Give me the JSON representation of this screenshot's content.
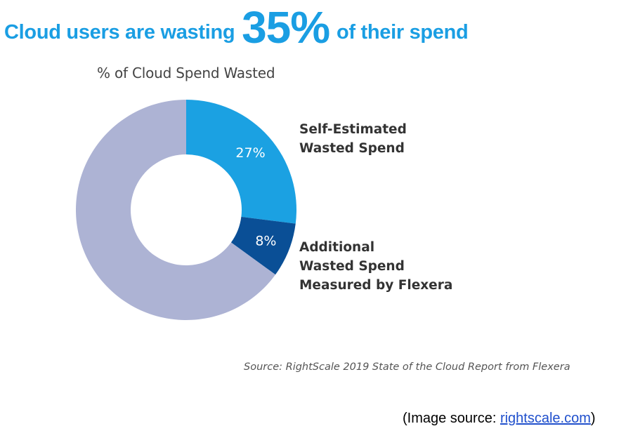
{
  "headline": {
    "prefix": "Cloud users are wasting",
    "highlight": "35%",
    "suffix": "of their spend"
  },
  "chart_data": {
    "type": "pie",
    "title": "% of Cloud Spend Wasted",
    "donut": true,
    "categories": [
      "Self-Estimated Wasted Spend",
      "Additional Wasted Spend Measured by Flexera",
      ""
    ],
    "values": [
      27,
      8,
      65
    ],
    "data_labels": [
      "27%",
      "8%",
      ""
    ],
    "colors": [
      "#1ba1e2",
      "#0a4f96",
      "#adb3d4"
    ],
    "legend_labels": [
      [
        "Self-Estimated",
        "Wasted Spend"
      ],
      [
        "Additional",
        "Wasted Spend",
        "Measured by Flexera"
      ]
    ]
  },
  "source_note": "Source: RightScale 2019 State of the Cloud Report from Flexera",
  "image_source": {
    "prefix": "(Image source: ",
    "link_text": "rightscale.com",
    "suffix": ")"
  },
  "colors": {
    "headline": "#1a9ee3",
    "link": "#1f4fcc"
  }
}
